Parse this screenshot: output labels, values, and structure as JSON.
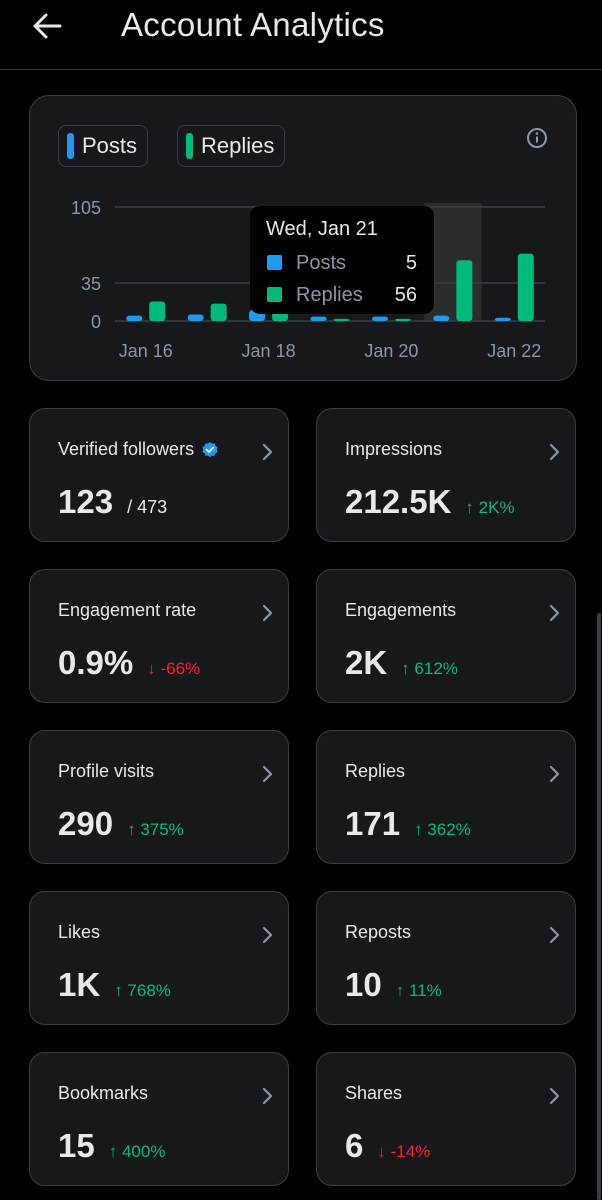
{
  "header": {
    "title": "Account Analytics"
  },
  "legend": {
    "posts": "Posts",
    "replies": "Replies"
  },
  "colors": {
    "posts": "#1d9bf0",
    "replies": "#00ba7c",
    "up": "#00ba7c",
    "down": "#f4212e"
  },
  "tooltip": {
    "date": "Wed, Jan 21",
    "posts_label": "Posts",
    "posts_value": "5",
    "replies_label": "Replies",
    "replies_value": "56"
  },
  "chart_data": {
    "type": "bar",
    "categories": [
      "Jan 16",
      "Jan 17",
      "Jan 18",
      "Jan 19",
      "Jan 20",
      "Jan 21",
      "Jan 22"
    ],
    "x_tick_labels": [
      "Jan 16",
      "Jan 18",
      "Jan 20",
      "Jan 22"
    ],
    "series": [
      {
        "name": "Posts",
        "values": [
          5,
          6,
          10,
          4,
          4,
          5,
          3
        ]
      },
      {
        "name": "Replies",
        "values": [
          18,
          16,
          8,
          2,
          2,
          56,
          62
        ]
      }
    ],
    "y_ticks": [
      0,
      35,
      105
    ],
    "ylim": [
      0,
      105
    ],
    "highlighted_category": "Jan 21",
    "grid": true
  },
  "stats": [
    {
      "label": "Verified followers",
      "value": "123",
      "sub": "/ 473",
      "delta": "",
      "dir": ""
    },
    {
      "label": "Impressions",
      "value": "212.5K",
      "sub": "",
      "delta": "2K%",
      "dir": "up"
    },
    {
      "label": "Engagement rate",
      "value": "0.9%",
      "sub": "",
      "delta": "-66%",
      "dir": "down"
    },
    {
      "label": "Engagements",
      "value": "2K",
      "sub": "",
      "delta": "612%",
      "dir": "up"
    },
    {
      "label": "Profile visits",
      "value": "290",
      "sub": "",
      "delta": "375%",
      "dir": "up"
    },
    {
      "label": "Replies",
      "value": "171",
      "sub": "",
      "delta": "362%",
      "dir": "up"
    },
    {
      "label": "Likes",
      "value": "1K",
      "sub": "",
      "delta": "768%",
      "dir": "up"
    },
    {
      "label": "Reposts",
      "value": "10",
      "sub": "",
      "delta": "11%",
      "dir": "up"
    },
    {
      "label": "Bookmarks",
      "value": "15",
      "sub": "",
      "delta": "400%",
      "dir": "up"
    },
    {
      "label": "Shares",
      "value": "6",
      "sub": "",
      "delta": "-14%",
      "dir": "down"
    }
  ]
}
